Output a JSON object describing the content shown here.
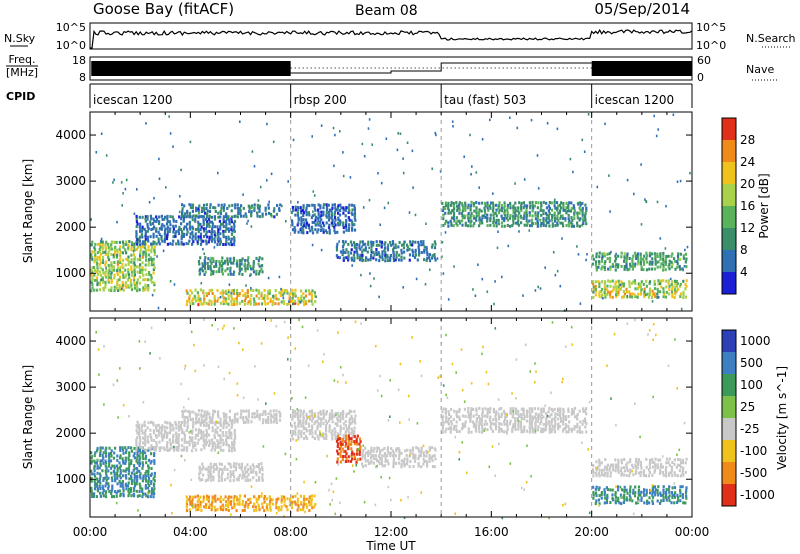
{
  "header": {
    "station": "Goose Bay (fitACF)",
    "beam": "Beam 08",
    "date": "05/Sep/2014"
  },
  "strip": {
    "nsky_label": "N.Sky",
    "nsearch_label": "N.Search",
    "noise_ticks": [
      "10^5",
      "10^0"
    ],
    "freq_label_top": "Freq.",
    "freq_label_unit": "[MHz]",
    "freq_ticks": [
      "18",
      "8"
    ],
    "nave_label": "Nave",
    "nave_ticks": [
      "60",
      "0"
    ],
    "cpid_label": "CPID"
  },
  "cpid_segments": [
    {
      "label": "icescan 1200",
      "start": 0,
      "end": 8
    },
    {
      "label": "rbsp 200",
      "start": 8,
      "end": 14
    },
    {
      "label": "tau (fast) 503",
      "start": 14,
      "end": 20
    },
    {
      "label": "icescan 1200",
      "start": 20,
      "end": 24
    }
  ],
  "chart_data": [
    {
      "type": "heatmap",
      "panel": "power",
      "xlabel": "",
      "ylabel": "Slant Range [km]",
      "xlim": [
        0,
        24
      ],
      "ylim": [
        180,
        4500
      ],
      "y_ticks": [
        1000,
        2000,
        3000,
        4000
      ],
      "colorbar_label": "Power [dB]",
      "colorbar_ticks": [
        4,
        8,
        12,
        16,
        20,
        24,
        28
      ],
      "colorbar_colors": [
        "#1b1fd6",
        "#2f6fb4",
        "#3a8f6a",
        "#58b35a",
        "#a8d24a",
        "#f0c21c",
        "#f08a1a",
        "#e0301a"
      ],
      "echo_regions": [
        {
          "t0": 0.0,
          "t1": 2.6,
          "r0": 650,
          "r1": 1750,
          "v": 17
        },
        {
          "t0": 1.8,
          "t1": 5.8,
          "r0": 1650,
          "r1": 2300,
          "v": 6
        },
        {
          "t0": 4.3,
          "t1": 6.9,
          "r0": 1000,
          "r1": 1400,
          "v": 10
        },
        {
          "t0": 3.8,
          "t1": 9.0,
          "r0": 350,
          "r1": 700,
          "v": 20
        },
        {
          "t0": 3.6,
          "t1": 7.6,
          "r0": 2250,
          "r1": 2550,
          "v": 8
        },
        {
          "t0": 8.0,
          "t1": 10.6,
          "r0": 1900,
          "r1": 2550,
          "v": 6
        },
        {
          "t0": 9.8,
          "t1": 13.8,
          "r0": 1300,
          "r1": 1750,
          "v": 7
        },
        {
          "t0": 14.0,
          "t1": 19.8,
          "r0": 2050,
          "r1": 2600,
          "v": 10
        },
        {
          "t0": 20.0,
          "t1": 23.8,
          "r0": 1100,
          "r1": 1500,
          "v": 12
        },
        {
          "t0": 20.0,
          "t1": 23.8,
          "r0": 500,
          "r1": 900,
          "v": 18
        }
      ]
    },
    {
      "type": "heatmap",
      "panel": "velocity",
      "xlabel": "Time UT",
      "ylabel": "Slant Range [km]",
      "xlim": [
        0,
        24
      ],
      "ylim": [
        180,
        4500
      ],
      "x_ticks": [
        "00:00",
        "04:00",
        "08:00",
        "12:00",
        "16:00",
        "20:00",
        "00:00"
      ],
      "y_ticks": [
        1000,
        2000,
        3000,
        4000
      ],
      "colorbar_label": "Velocity [m s^-1]",
      "colorbar_ticks": [
        "1000",
        "500",
        "100",
        "25",
        "-25",
        "-100",
        "-500",
        "-1000"
      ],
      "colorbar_colors": [
        "#2c3fb4",
        "#3d7fc2",
        "#3b9a5a",
        "#7cc24a",
        "#c8c8c8",
        "#f0c21c",
        "#f08a1a",
        "#e0301a"
      ],
      "echo_regions": [
        {
          "t0": 0.0,
          "t1": 2.6,
          "r0": 650,
          "r1": 1750,
          "v": 100
        },
        {
          "t0": 1.8,
          "t1": 5.8,
          "r0": 1650,
          "r1": 2300,
          "v": 0
        },
        {
          "t0": 4.3,
          "t1": 6.9,
          "r0": 1000,
          "r1": 1400,
          "v": 0
        },
        {
          "t0": 3.8,
          "t1": 9.0,
          "r0": 350,
          "r1": 700,
          "v": -100
        },
        {
          "t0": 3.6,
          "t1": 7.6,
          "r0": 2250,
          "r1": 2550,
          "v": 0
        },
        {
          "t0": 8.0,
          "t1": 10.6,
          "r0": 1900,
          "r1": 2550,
          "v": 0
        },
        {
          "t0": 9.8,
          "t1": 10.8,
          "r0": 1400,
          "r1": 2000,
          "v": -500
        },
        {
          "t0": 10.8,
          "t1": 13.8,
          "r0": 1300,
          "r1": 1750,
          "v": 0
        },
        {
          "t0": 14.0,
          "t1": 19.8,
          "r0": 2050,
          "r1": 2600,
          "v": 0
        },
        {
          "t0": 20.0,
          "t1": 23.8,
          "r0": 1100,
          "r1": 1500,
          "v": 0
        },
        {
          "t0": 20.0,
          "t1": 23.8,
          "r0": 500,
          "r1": 900,
          "v": 100
        }
      ]
    }
  ]
}
